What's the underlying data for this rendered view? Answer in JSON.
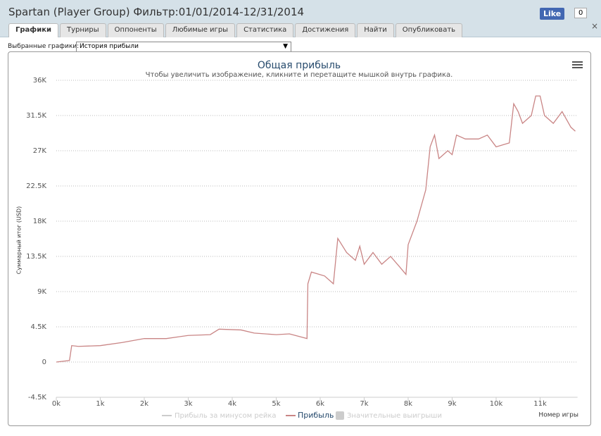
{
  "window": {
    "title": "Spartan (Player Group) Фильтр:01/01/2014-12/31/2014",
    "like": "Like",
    "like_count": "0",
    "close": "×"
  },
  "tabs": [
    "Графики",
    "Турниры",
    "Оппоненты",
    "Любимые игры",
    "Статистика",
    "Достижения",
    "Найти",
    "Опубликовать"
  ],
  "selector": {
    "label": "Выбранные графики:",
    "value": "История прибыли"
  },
  "chart_data": {
    "type": "line",
    "title": "Общая прибыль",
    "subtitle": "Чтобы увеличить изображение, кликните и перетащите мышкой внутрь графика.",
    "ylabel": "Суммарный итог (USD)",
    "xlabel": "Номер игры",
    "x": [
      0,
      300,
      350,
      500,
      1000,
      1500,
      2000,
      2500,
      3000,
      3500,
      3700,
      4200,
      4500,
      5000,
      5300,
      5700,
      5720,
      5800,
      6100,
      6300,
      6400,
      6600,
      6800,
      6900,
      7000,
      7200,
      7400,
      7600,
      7800,
      7950,
      8000,
      8200,
      8400,
      8500,
      8600,
      8700,
      8900,
      9000,
      9100,
      9300,
      9600,
      9800,
      10000,
      10300,
      10400,
      10500,
      10600,
      10800,
      10900,
      11000,
      11100,
      11300,
      11500,
      11700,
      11800
    ],
    "series": [
      {
        "name": "Прибыль",
        "color": "#c98585",
        "values": [
          0,
          200,
          2100,
          2000,
          2100,
          2500,
          3000,
          3000,
          3400,
          3500,
          4200,
          4100,
          3700,
          3500,
          3600,
          3000,
          10000,
          11500,
          11000,
          10000,
          15800,
          14000,
          13000,
          14800,
          12500,
          14000,
          12500,
          13500,
          12200,
          11200,
          15000,
          18000,
          22000,
          27500,
          29000,
          26000,
          27000,
          26500,
          29000,
          28500,
          28500,
          29000,
          27500,
          28000,
          33000,
          32000,
          30500,
          31500,
          34000,
          34000,
          31500,
          30500,
          32000,
          30000,
          29500
        ]
      }
    ],
    "legend_hidden": [
      {
        "name": "Прибыль за минусом рейка",
        "color": "#cccccc"
      },
      {
        "name": "Значительные выигрыши",
        "color": "#cccccc"
      }
    ],
    "xlim": [
      0,
      11850
    ],
    "ylim": [
      -4500,
      36000
    ],
    "xticks": [
      {
        "value": 0,
        "label": "0k"
      },
      {
        "value": 1000,
        "label": "1k"
      },
      {
        "value": 2000,
        "label": "2k"
      },
      {
        "value": 3000,
        "label": "3k"
      },
      {
        "value": 4000,
        "label": "4k"
      },
      {
        "value": 5000,
        "label": "5k"
      },
      {
        "value": 6000,
        "label": "6k"
      },
      {
        "value": 7000,
        "label": "7k"
      },
      {
        "value": 8000,
        "label": "8k"
      },
      {
        "value": 9000,
        "label": "9k"
      },
      {
        "value": 10000,
        "label": "10k"
      },
      {
        "value": 11000,
        "label": "11k"
      }
    ],
    "yticks": [
      {
        "value": -4500,
        "label": "-4.5K"
      },
      0,
      {
        "value": 4500,
        "label": "4.5K"
      },
      {
        "value": 9000,
        "label": "9K"
      },
      {
        "value": 13500,
        "label": "13.5K"
      },
      {
        "value": 18000,
        "label": "18K"
      },
      {
        "value": 22500,
        "label": "22.5K"
      },
      {
        "value": 27000,
        "label": "27K"
      },
      {
        "value": 31500,
        "label": "31.5K"
      },
      {
        "value": 36000,
        "label": "36K"
      }
    ],
    "grid": true
  }
}
